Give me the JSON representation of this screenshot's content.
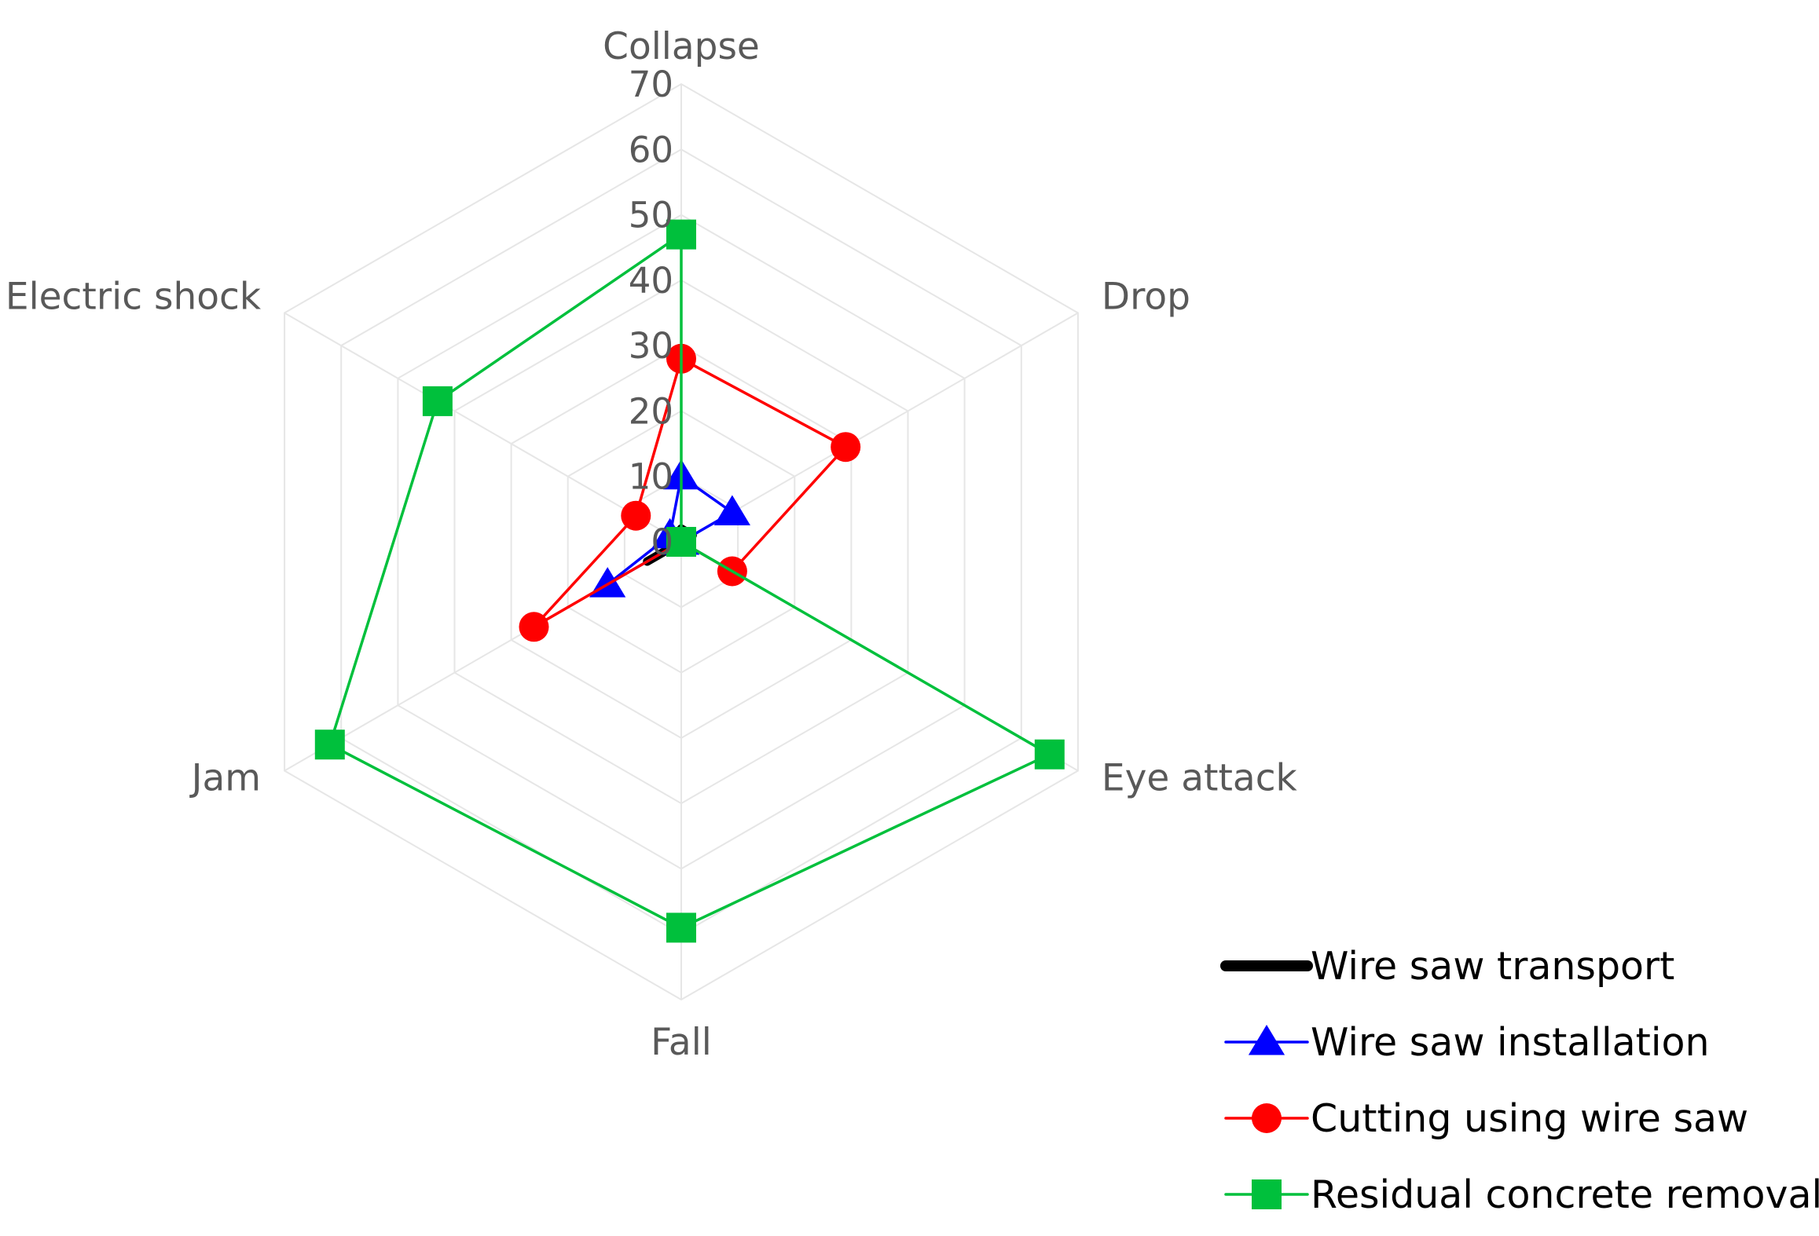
{
  "chart_data": {
    "type": "radar",
    "categories": [
      "Collapse",
      "Drop",
      "Eye attack",
      "Fall",
      "Jam",
      "Electric shock"
    ],
    "rlim": [
      0,
      70
    ],
    "ticks": [
      0,
      10,
      20,
      30,
      40,
      50,
      60,
      70
    ],
    "tick_labels": [
      "0",
      "10",
      "20",
      "30",
      "40",
      "50",
      "60",
      "70"
    ],
    "grid": true,
    "legend_position": "bottom-right",
    "series": [
      {
        "name": "Wire saw transport",
        "marker": "none",
        "color": "#000000",
        "values": [
          2,
          2,
          0,
          0,
          6,
          0
        ]
      },
      {
        "name": "Wire saw installation",
        "marker": "triangle",
        "color": "#0000FF",
        "values": [
          10,
          9,
          0,
          0,
          13,
          2
        ]
      },
      {
        "name": "Cutting using wire saw",
        "marker": "circle",
        "color": "#FF0000",
        "values": [
          28,
          29,
          9,
          0,
          26,
          8
        ]
      },
      {
        "name": "Residual concrete removal",
        "marker": "square",
        "color": "#00C03C",
        "values": [
          47,
          0,
          65,
          59,
          62,
          43
        ]
      }
    ]
  }
}
